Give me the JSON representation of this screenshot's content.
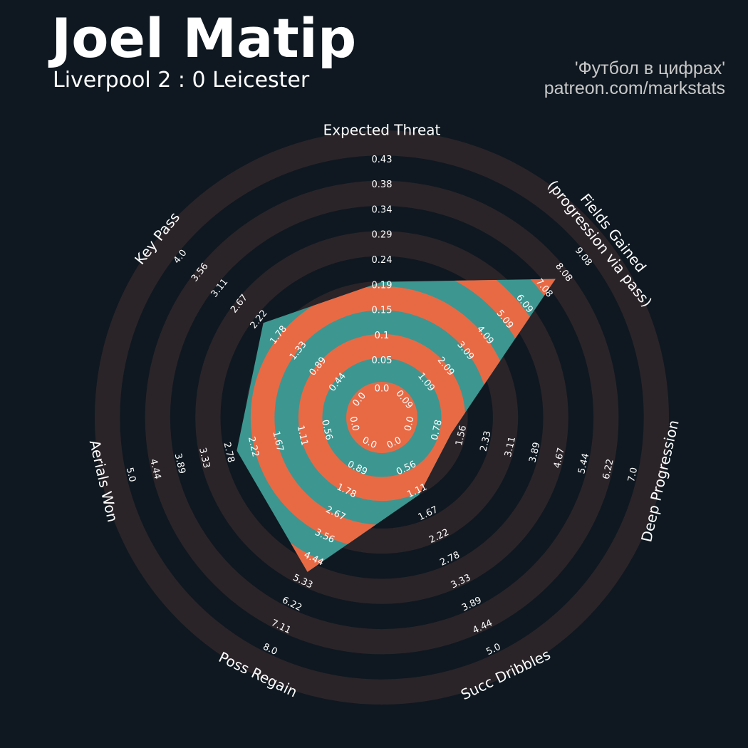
{
  "header": {
    "title": "Joel Matip",
    "subtitle": "Liverpool 2 : 0 Leicester",
    "credit_line1": "'Футбол в цифрах'",
    "credit_line2": "patreon.com/markstats"
  },
  "colors": {
    "background": "#0f1820",
    "ring": "#2a2429",
    "polygon_teal": "#3d9690",
    "polygon_orange": "#e86a45",
    "text": "#ffffff",
    "credit_text": "#c8c8c8"
  },
  "chart_data": {
    "type": "radar",
    "player": "Joel Matip",
    "params": [
      {
        "label": "Expected Threat",
        "ticks": [
          "0.0",
          "0.05",
          "0.1",
          "0.15",
          "0.19",
          "0.24",
          "0.29",
          "0.34",
          "0.38",
          "0.43"
        ],
        "min": 0.0,
        "max": 0.43,
        "value": 0.19
      },
      {
        "label": "Fields Gained\n(progression via pass)",
        "ticks": [
          "0.09",
          "1.09",
          "2.09",
          "3.09",
          "4.09",
          "5.09",
          "6.09",
          "7.08",
          "8.08",
          "9.08"
        ],
        "min": 0.09,
        "max": 9.08,
        "value": 7.5
      },
      {
        "label": "Deep Progression",
        "ticks": [
          "0.0",
          "0.78",
          "1.56",
          "2.33",
          "3.11",
          "3.89",
          "4.67",
          "5.44",
          "6.22",
          "7.0"
        ],
        "min": 0.0,
        "max": 7.0,
        "value": 1.1
      },
      {
        "label": "Succ Dribbles",
        "ticks": [
          "0.0",
          "0.56",
          "1.11",
          "1.67",
          "2.22",
          "2.78",
          "3.33",
          "3.89",
          "4.44",
          "5.0"
        ],
        "min": 0.0,
        "max": 5.0,
        "value": 1.11
      },
      {
        "label": "Poss Regain",
        "ticks": [
          "0.0",
          "0.89",
          "1.78",
          "2.67",
          "3.56",
          "4.44",
          "5.33",
          "6.22",
          "7.11",
          "8.0"
        ],
        "min": 0.0,
        "max": 8.0,
        "value": 4.8
      },
      {
        "label": "Aerials Won",
        "ticks": [
          "0.0",
          "0.56",
          "1.11",
          "1.67",
          "2.22",
          "2.78",
          "3.33",
          "3.89",
          "4.44",
          "5.0"
        ],
        "min": 0.0,
        "max": 5.0,
        "value": 2.5
      },
      {
        "label": "Key Pass",
        "ticks": [
          "0.0",
          "0.44",
          "0.89",
          "1.33",
          "1.78",
          "2.22",
          "2.67",
          "3.11",
          "3.56",
          "4.0"
        ],
        "min": 0.0,
        "max": 4.0,
        "value": 2.05
      }
    ]
  }
}
